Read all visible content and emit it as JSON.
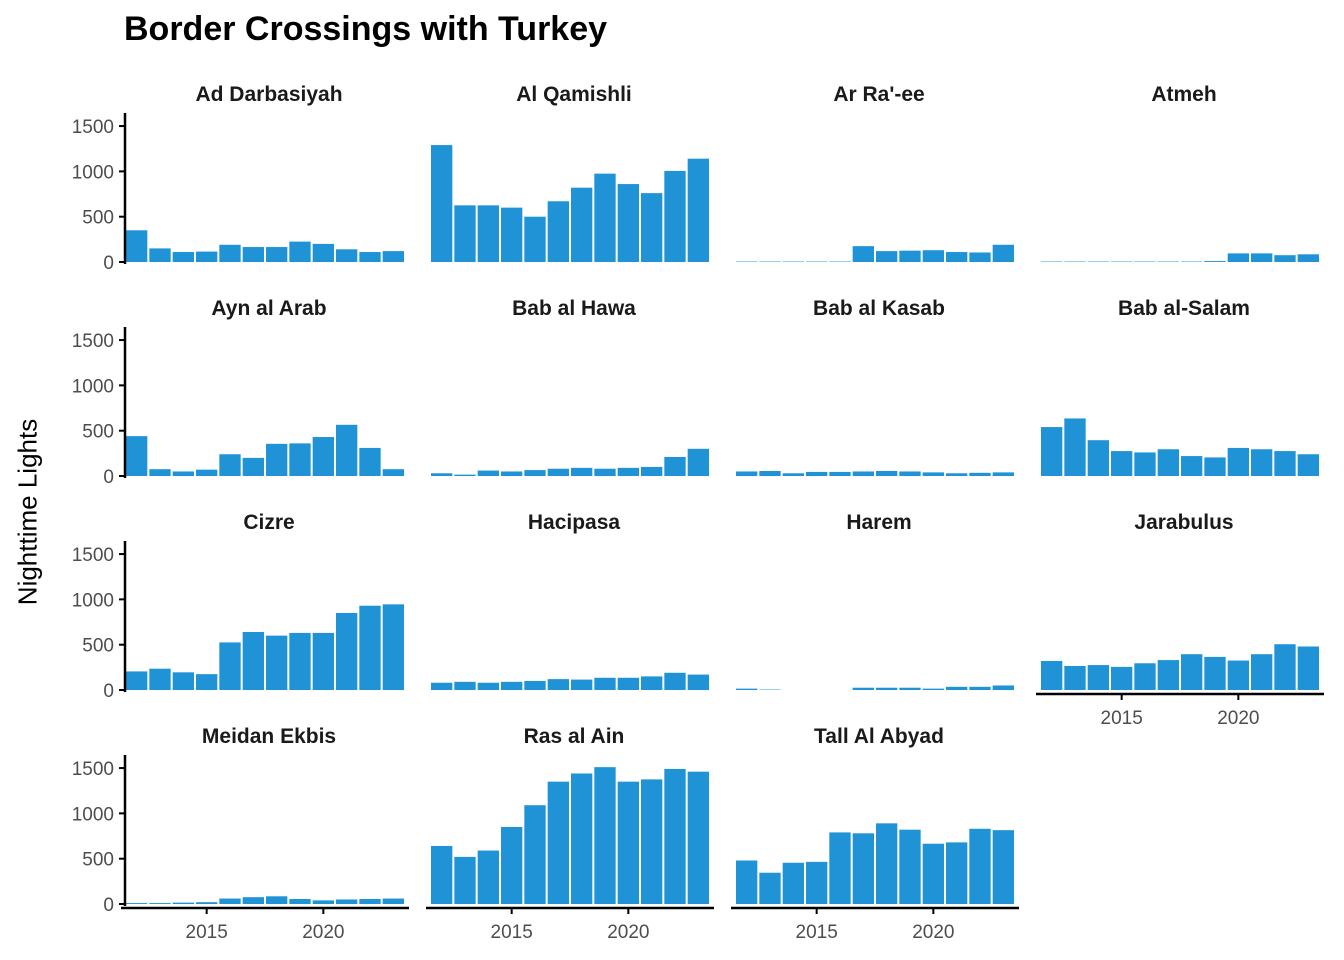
{
  "chart_data": {
    "type": "bar",
    "title": "Border Crossings with Turkey",
    "xlabel": "",
    "ylabel": "Nighttime Lights",
    "bar_color": "#1f93d6",
    "x": [
      2012,
      2013,
      2014,
      2015,
      2016,
      2017,
      2018,
      2019,
      2020,
      2021,
      2022,
      2023
    ],
    "ylim": [
      0,
      1600
    ],
    "y_ticks": [
      0,
      500,
      1000,
      1500
    ],
    "x_ticks": [
      2015,
      2020
    ],
    "layout": "facet-grid 4 columns",
    "series": [
      {
        "name": "Ad Darbasiyah",
        "values": [
          350,
          150,
          110,
          115,
          190,
          165,
          165,
          225,
          200,
          140,
          110,
          120
        ]
      },
      {
        "name": "Al Qamishli",
        "values": [
          1290,
          625,
          625,
          600,
          500,
          670,
          820,
          975,
          860,
          760,
          1005,
          1140
        ]
      },
      {
        "name": "Ar Ra'-ee",
        "values": [
          5,
          5,
          5,
          5,
          5,
          175,
          120,
          125,
          130,
          110,
          105,
          190
        ]
      },
      {
        "name": "Atmeh",
        "values": [
          5,
          5,
          5,
          5,
          5,
          5,
          5,
          10,
          95,
          95,
          75,
          85
        ]
      },
      {
        "name": "Ayn al Arab",
        "values": [
          440,
          75,
          50,
          70,
          240,
          200,
          355,
          360,
          430,
          565,
          310,
          75
        ]
      },
      {
        "name": "Bab al Hawa",
        "values": [
          30,
          15,
          60,
          50,
          65,
          80,
          90,
          80,
          90,
          100,
          210,
          300
        ]
      },
      {
        "name": "Bab al Kasab",
        "values": [
          50,
          55,
          30,
          45,
          45,
          50,
          55,
          50,
          40,
          30,
          35,
          40
        ]
      },
      {
        "name": "Bab al-Salam",
        "values": [
          540,
          635,
          395,
          275,
          260,
          295,
          220,
          205,
          310,
          295,
          275,
          240
        ]
      },
      {
        "name": "Cizre",
        "values": [
          205,
          235,
          195,
          175,
          525,
          640,
          600,
          630,
          630,
          850,
          930,
          945
        ]
      },
      {
        "name": "Hacipasa",
        "values": [
          80,
          90,
          80,
          90,
          100,
          120,
          115,
          135,
          135,
          150,
          190,
          170
        ]
      },
      {
        "name": "Harem",
        "values": [
          15,
          5,
          0,
          0,
          0,
          25,
          25,
          25,
          15,
          35,
          35,
          50
        ]
      },
      {
        "name": "Jarabulus",
        "values": [
          320,
          265,
          275,
          255,
          295,
          330,
          395,
          365,
          325,
          395,
          505,
          480
        ]
      },
      {
        "name": "Meidan Ekbis",
        "values": [
          10,
          10,
          15,
          20,
          60,
          75,
          85,
          55,
          40,
          50,
          55,
          60
        ]
      },
      {
        "name": "Ras al Ain",
        "values": [
          640,
          520,
          590,
          850,
          1090,
          1350,
          1440,
          1510,
          1350,
          1375,
          1490,
          1460
        ]
      },
      {
        "name": "Tall Al Abyad",
        "values": [
          480,
          345,
          455,
          465,
          790,
          780,
          890,
          820,
          665,
          680,
          830,
          815
        ]
      }
    ]
  }
}
